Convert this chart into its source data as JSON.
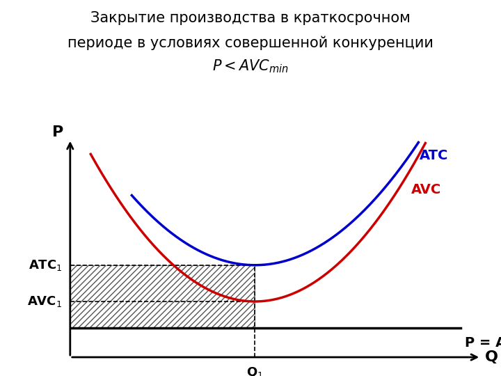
{
  "title_line1": "Закрытие производства в краткосрочном",
  "title_line2": "периоде в условиях совершенной конкуренции",
  "title_fontsize": 15,
  "subtitle_italic": "$\\mathit{P < AVC}_{\\mathit{min}}$",
  "subtitle_fontsize": 15,
  "bg_color": "#ffffff",
  "axis_color": "#000000",
  "atc_color": "#0000cc",
  "avc_color": "#cc0000",
  "p_ar_color": "#000000",
  "label_fontsize": 14,
  "annotation_fontsize": 13,
  "q1_x": 4.5,
  "atc1_y": 3.8,
  "avc1_y": 2.3,
  "p_ar_y": 1.2,
  "x_min": 0,
  "x_max": 10,
  "y_min": 0,
  "y_max": 9
}
